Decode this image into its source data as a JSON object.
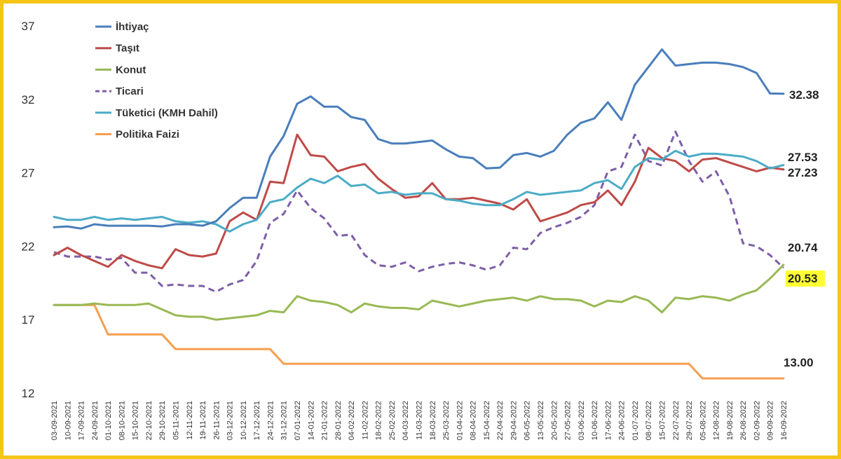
{
  "chart_data": {
    "type": "line",
    "title": "",
    "xlabel": "",
    "ylabel": "",
    "ylim": [
      12,
      37
    ],
    "yticks": [
      12,
      17,
      22,
      27,
      32,
      37
    ],
    "grid": false,
    "legend_position": "top-left",
    "categories": [
      "03-09-2021",
      "10-09-2021",
      "17-09-2021",
      "24-09-2021",
      "01-10-2021",
      "08-10-2021",
      "15-10-2021",
      "22-10-2021",
      "29-10-2021",
      "05-11-2021",
      "12-11-2021",
      "19-11-2021",
      "26-11-2021",
      "03-12-2021",
      "10-12-2021",
      "17-12-2021",
      "24-12-2021",
      "31-12-2021",
      "07-01-2022",
      "14-01-2022",
      "21-01-2022",
      "28-01-2022",
      "04-02-2022",
      "11-02-2022",
      "18-02-2022",
      "25-02-2022",
      "04-03-2022",
      "11-03-2022",
      "18-03-2022",
      "25-03-2022",
      "01-04-2022",
      "08-04-2022",
      "15-04-2022",
      "22-04-2022",
      "29-04-2022",
      "06-05-2022",
      "13-05-2022",
      "20-05-2022",
      "27-05-2022",
      "03-06-2022",
      "10-06-2022",
      "17-06-2022",
      "24-06-2022",
      "01-07-2022",
      "08-07-2022",
      "15-07-2022",
      "22-07-2022",
      "29-07-2022",
      "05-08-2022",
      "12-08-2022",
      "19-08-2022",
      "26-08-2022",
      "02-09-2022",
      "09-09-2022",
      "16-09-2022"
    ],
    "x_weekly": true,
    "series": [
      {
        "name": "İhtiyaç",
        "color": "#4a7ebb",
        "dash": false,
        "values": [
          23.3,
          23.35,
          23.2,
          23.5,
          23.4,
          23.4,
          23.4,
          23.4,
          23.35,
          23.5,
          23.5,
          23.4,
          23.7,
          24.6,
          25.3,
          25.3,
          28.1,
          29.5,
          31.7,
          32.2,
          31.5,
          31.5,
          30.8,
          30.6,
          29.3,
          29.0,
          29.0,
          29.1,
          29.2,
          28.6,
          28.1,
          28.0,
          27.3,
          27.35,
          28.2,
          28.35,
          28.1,
          28.5,
          29.6,
          30.4,
          30.7,
          31.8,
          30.6,
          33.0,
          34.2,
          35.4,
          34.3,
          34.4,
          34.5,
          34.5,
          34.4,
          34.2,
          33.8,
          32.4,
          32.38
        ],
        "end_label": "32.38"
      },
      {
        "name": "Taşıt",
        "color": "#be4b48",
        "dash": false,
        "values": [
          21.4,
          21.9,
          21.4,
          21.0,
          20.6,
          21.4,
          21.0,
          20.7,
          20.5,
          21.8,
          21.4,
          21.3,
          21.5,
          23.7,
          24.3,
          23.8,
          26.4,
          26.3,
          29.6,
          28.2,
          28.1,
          27.1,
          27.4,
          27.6,
          26.6,
          25.9,
          25.3,
          25.4,
          26.3,
          25.2,
          25.2,
          25.3,
          25.1,
          24.9,
          24.5,
          25.2,
          23.7,
          24.0,
          24.3,
          24.8,
          25.0,
          25.8,
          24.8,
          26.4,
          28.7,
          28.0,
          27.8,
          27.1,
          27.9,
          28.0,
          27.7,
          27.4,
          27.1,
          27.35,
          27.23
        ],
        "end_label": "27.23"
      },
      {
        "name": "Konut",
        "color": "#98b954",
        "dash": false,
        "values": [
          18.0,
          18.0,
          18.0,
          18.1,
          18.0,
          18.0,
          18.0,
          18.1,
          17.7,
          17.3,
          17.2,
          17.2,
          17.0,
          17.1,
          17.2,
          17.3,
          17.6,
          17.5,
          18.6,
          18.3,
          18.2,
          18.0,
          17.5,
          18.1,
          17.9,
          17.8,
          17.8,
          17.7,
          18.3,
          18.1,
          17.9,
          18.1,
          18.3,
          18.4,
          18.5,
          18.3,
          18.6,
          18.4,
          18.4,
          18.3,
          17.9,
          18.3,
          18.2,
          18.6,
          18.3,
          17.5,
          18.5,
          18.4,
          18.6,
          18.5,
          18.3,
          18.7,
          19.0,
          19.8,
          20.74
        ],
        "end_label": "20.74"
      },
      {
        "name": "Ticari",
        "color": "#7d5ea8",
        "dash": true,
        "values": [
          21.6,
          21.3,
          21.3,
          21.3,
          21.1,
          21.2,
          20.2,
          20.2,
          19.3,
          19.4,
          19.3,
          19.3,
          18.9,
          19.4,
          19.7,
          21.0,
          23.6,
          24.2,
          25.8,
          24.6,
          23.9,
          22.7,
          22.8,
          21.4,
          20.7,
          20.6,
          20.9,
          20.3,
          20.6,
          20.8,
          20.9,
          20.7,
          20.4,
          20.7,
          21.9,
          21.8,
          22.9,
          23.3,
          23.6,
          24.0,
          24.8,
          27.1,
          27.4,
          29.6,
          27.8,
          27.5,
          29.8,
          27.8,
          26.4,
          27.1,
          25.4,
          22.2,
          22.0,
          21.4,
          20.53
        ],
        "end_label": "20.53"
      },
      {
        "name": "Tüketici (KMH Dahil)",
        "color": "#4bacc6",
        "dash": false,
        "values": [
          24.0,
          23.8,
          23.8,
          24.0,
          23.8,
          23.9,
          23.8,
          23.9,
          24.0,
          23.7,
          23.6,
          23.7,
          23.5,
          23.0,
          23.5,
          23.8,
          25.0,
          25.2,
          26.0,
          26.6,
          26.3,
          26.8,
          26.1,
          26.2,
          25.6,
          25.7,
          25.5,
          25.6,
          25.6,
          25.2,
          25.1,
          24.9,
          24.8,
          24.8,
          25.2,
          25.7,
          25.5,
          25.6,
          25.7,
          25.8,
          26.3,
          26.5,
          25.9,
          27.4,
          28.0,
          27.9,
          28.5,
          28.1,
          28.3,
          28.3,
          28.2,
          28.1,
          27.8,
          27.3,
          27.53
        ],
        "end_label": "27.53"
      },
      {
        "name": "Politika Faizi",
        "color": "#f59e4e",
        "dash": false,
        "values": [
          18.0,
          18.0,
          18.0,
          18.0,
          16.0,
          16.0,
          16.0,
          16.0,
          16.0,
          15.0,
          15.0,
          15.0,
          15.0,
          15.0,
          15.0,
          15.0,
          15.0,
          14.0,
          14.0,
          14.0,
          14.0,
          14.0,
          14.0,
          14.0,
          14.0,
          14.0,
          14.0,
          14.0,
          14.0,
          14.0,
          14.0,
          14.0,
          14.0,
          14.0,
          14.0,
          14.0,
          14.0,
          14.0,
          14.0,
          14.0,
          14.0,
          14.0,
          14.0,
          14.0,
          14.0,
          14.0,
          14.0,
          14.0,
          13.0,
          13.0,
          13.0,
          13.0,
          13.0,
          13.0,
          13.0
        ],
        "end_label": "13.00"
      }
    ],
    "highlight": {
      "label": "20.53",
      "background": "#ffff33"
    }
  }
}
